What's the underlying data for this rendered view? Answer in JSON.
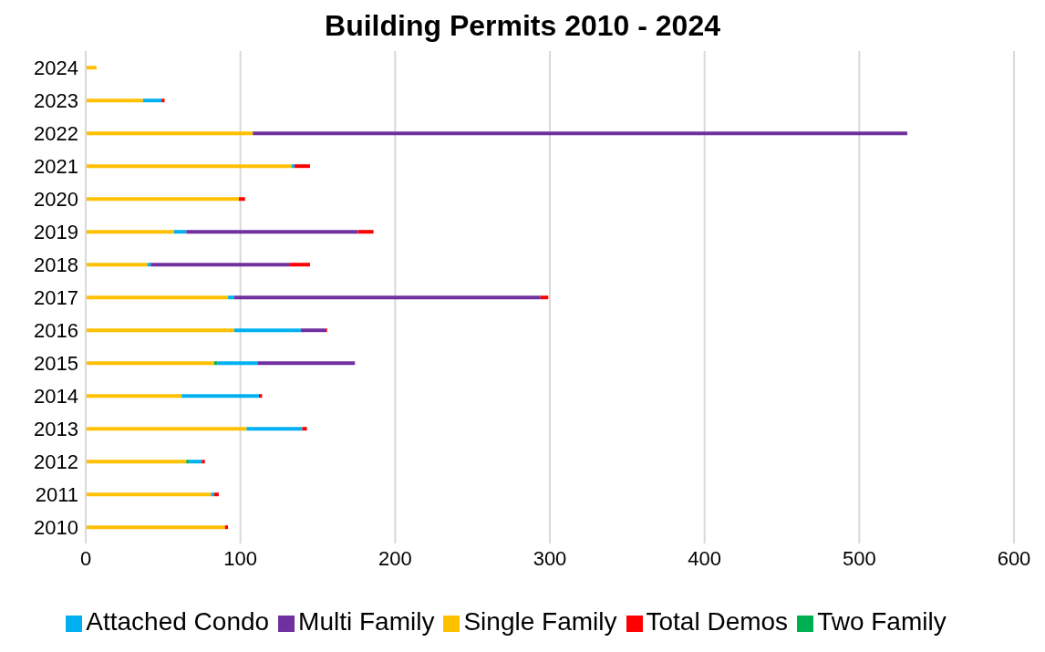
{
  "chart_data": {
    "type": "bar",
    "title": "Building Permits 2010 - 2024",
    "orientation": "horizontal",
    "stacked": true,
    "categories": [
      "2024",
      "2023",
      "2022",
      "2021",
      "2020",
      "2019",
      "2018",
      "2017",
      "2016",
      "2015",
      "2014",
      "2013",
      "2012",
      "2011",
      "2010"
    ],
    "series": [
      {
        "name": "Single Family",
        "color": "#ffc000",
        "values": [
          7,
          37,
          108,
          133,
          99,
          57,
          40,
          92,
          96,
          83,
          62,
          104,
          65,
          81,
          90
        ]
      },
      {
        "name": "Two Family",
        "color": "#00b050",
        "values": [
          0,
          0,
          0,
          0,
          0,
          0,
          0,
          0,
          0,
          2,
          0,
          0,
          2,
          0,
          0
        ]
      },
      {
        "name": "Attached Condo",
        "color": "#00b0f0",
        "values": [
          0,
          12,
          0,
          2,
          0,
          8,
          2,
          4,
          43,
          26,
          50,
          36,
          8,
          2,
          0
        ]
      },
      {
        "name": "Multi Family",
        "color": "#7030a0",
        "values": [
          0,
          0,
          423,
          0,
          0,
          111,
          90,
          198,
          16,
          63,
          0,
          0,
          0,
          0,
          0
        ]
      },
      {
        "name": "Total Demos",
        "color": "#ff0000",
        "values": [
          0,
          2,
          0,
          10,
          4,
          10,
          13,
          5,
          1,
          0,
          2,
          3,
          2,
          3,
          2
        ]
      }
    ],
    "xlim": [
      0,
      600
    ],
    "xticks": [
      0,
      100,
      200,
      300,
      400,
      500,
      600
    ],
    "grid": "x",
    "legend": "bottom"
  }
}
